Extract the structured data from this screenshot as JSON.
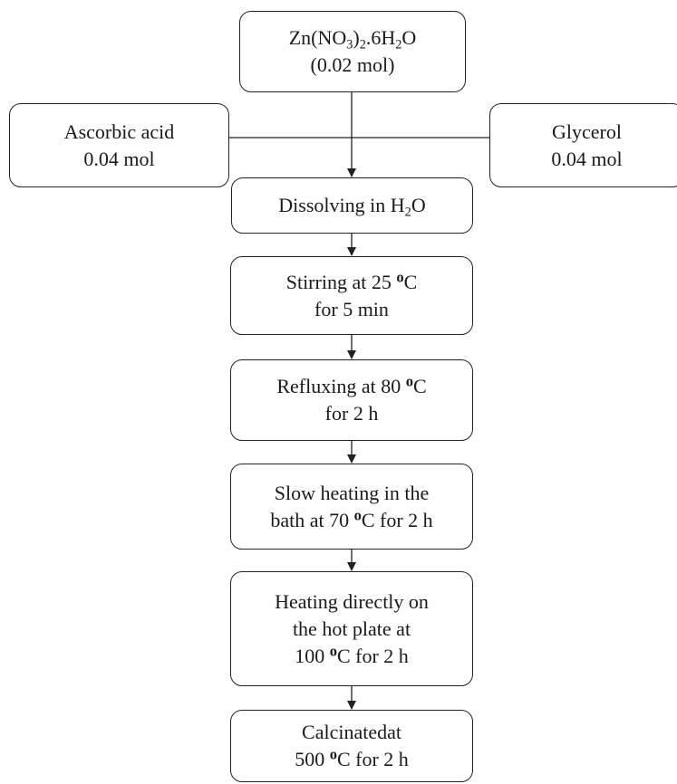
{
  "diagram": {
    "nodes": {
      "reagent_zinc": {
        "formula_prefix": "Zn(NO",
        "formula_sub1": "3",
        "formula_mid": ")",
        "formula_sub2": "2",
        "formula_mid2": ".6H",
        "formula_sub3": "2",
        "formula_suffix": "O",
        "amount": "(0.02 mol)"
      },
      "reagent_ascorbic": {
        "name": "Ascorbic acid",
        "amount": "0.04 mol"
      },
      "reagent_glycerol": {
        "name": "Glycerol",
        "amount": "0.04 mol"
      },
      "step_dissolving": {
        "text_prefix": "Dissolving in H",
        "text_sub": "2",
        "text_suffix": "O"
      },
      "step_stirring": {
        "line1_prefix": "Stirring at 25 ",
        "line1_sup": "o",
        "line1_suffix": "C",
        "line2": "for 5 min"
      },
      "step_refluxing": {
        "line1_prefix": "Refluxing at 80 ",
        "line1_sup": "o",
        "line1_suffix": "C",
        "line2": "for 2 h"
      },
      "step_slow_heating": {
        "line1": "Slow heating in the",
        "line2_prefix": "bath at 70 ",
        "line2_sup": "o",
        "line2_suffix": "C for 2 h"
      },
      "step_direct_heating": {
        "line1": "Heating directly on",
        "line2": "the hot plate at",
        "line3_prefix": "100 ",
        "line3_sup": "o",
        "line3_suffix": "C for 2 h"
      },
      "step_calcination": {
        "line1": "Calcinatedat",
        "line2_prefix": "500 ",
        "line2_sup": "o",
        "line2_suffix": "C for 2 h"
      }
    },
    "colors": {
      "stroke": "#222222",
      "text": "#1a1a1a",
      "background": "#ffffff"
    }
  }
}
